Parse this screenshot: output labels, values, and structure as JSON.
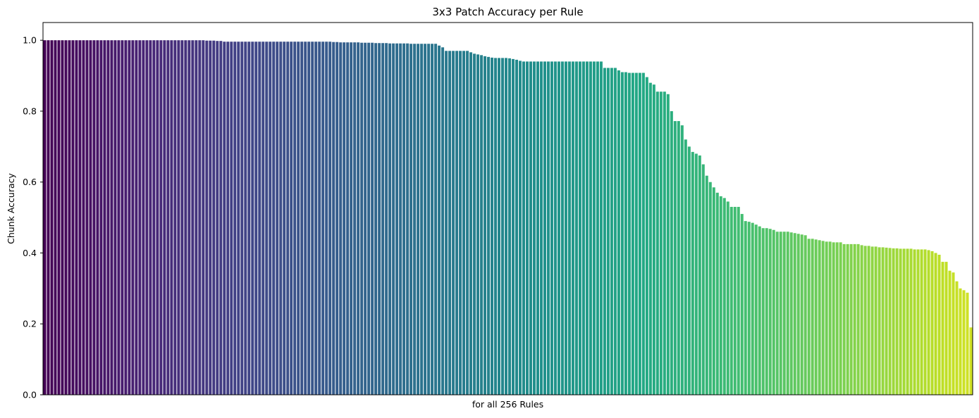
{
  "chart_data": {
    "type": "bar",
    "title": "3x3 Patch Accuracy per Rule",
    "xlabel": "for all 256 Rules",
    "ylabel": "Chunk Accuracy",
    "ylim": [
      0,
      1.05
    ],
    "yticks": [
      0.0,
      0.2,
      0.4,
      0.6,
      0.8,
      1.0
    ],
    "ytick_labels": [
      "0.0",
      "0.2",
      "0.4",
      "0.6",
      "0.8",
      "1.0"
    ],
    "x_ticks_shown": false,
    "grid": false,
    "legend": "none",
    "colormap": "viridis",
    "sort_order": "descending",
    "n_bars": 256,
    "values": [
      1.0,
      1.0,
      1.0,
      1.0,
      1.0,
      1.0,
      1.0,
      1.0,
      1.0,
      1.0,
      1.0,
      1.0,
      1.0,
      1.0,
      1.0,
      1.0,
      1.0,
      1.0,
      1.0,
      1.0,
      1.0,
      1.0,
      1.0,
      1.0,
      1.0,
      1.0,
      1.0,
      1.0,
      1.0,
      1.0,
      1.0,
      1.0,
      1.0,
      1.0,
      1.0,
      1.0,
      1.0,
      1.0,
      1.0,
      1.0,
      1.0,
      1.0,
      1.0,
      1.0,
      1.0,
      1.0,
      0.999,
      0.999,
      0.999,
      0.998,
      0.998,
      0.996,
      0.996,
      0.996,
      0.996,
      0.996,
      0.996,
      0.996,
      0.996,
      0.996,
      0.996,
      0.996,
      0.996,
      0.996,
      0.996,
      0.996,
      0.996,
      0.996,
      0.996,
      0.996,
      0.996,
      0.996,
      0.996,
      0.996,
      0.996,
      0.996,
      0.996,
      0.996,
      0.996,
      0.996,
      0.996,
      0.996,
      0.995,
      0.995,
      0.994,
      0.994,
      0.994,
      0.994,
      0.994,
      0.994,
      0.993,
      0.993,
      0.993,
      0.993,
      0.992,
      0.992,
      0.992,
      0.992,
      0.991,
      0.991,
      0.991,
      0.991,
      0.991,
      0.991,
      0.99,
      0.99,
      0.99,
      0.99,
      0.99,
      0.99,
      0.99,
      0.99,
      0.985,
      0.98,
      0.97,
      0.97,
      0.97,
      0.97,
      0.97,
      0.97,
      0.97,
      0.966,
      0.962,
      0.96,
      0.958,
      0.955,
      0.953,
      0.951,
      0.95,
      0.95,
      0.95,
      0.95,
      0.949,
      0.947,
      0.945,
      0.942,
      0.94,
      0.94,
      0.94,
      0.94,
      0.94,
      0.94,
      0.94,
      0.94,
      0.94,
      0.94,
      0.94,
      0.94,
      0.94,
      0.94,
      0.94,
      0.94,
      0.94,
      0.94,
      0.94,
      0.94,
      0.94,
      0.94,
      0.94,
      0.922,
      0.922,
      0.922,
      0.922,
      0.915,
      0.91,
      0.91,
      0.908,
      0.908,
      0.908,
      0.908,
      0.908,
      0.896,
      0.88,
      0.875,
      0.855,
      0.855,
      0.855,
      0.848,
      0.8,
      0.772,
      0.772,
      0.76,
      0.72,
      0.7,
      0.685,
      0.68,
      0.675,
      0.65,
      0.618,
      0.6,
      0.585,
      0.57,
      0.56,
      0.555,
      0.545,
      0.53,
      0.53,
      0.53,
      0.51,
      0.49,
      0.488,
      0.485,
      0.48,
      0.475,
      0.47,
      0.47,
      0.468,
      0.465,
      0.46,
      0.46,
      0.46,
      0.46,
      0.458,
      0.456,
      0.454,
      0.452,
      0.45,
      0.44,
      0.44,
      0.438,
      0.436,
      0.434,
      0.432,
      0.432,
      0.43,
      0.43,
      0.43,
      0.425,
      0.425,
      0.425,
      0.425,
      0.425,
      0.422,
      0.42,
      0.42,
      0.418,
      0.418,
      0.416,
      0.416,
      0.415,
      0.414,
      0.413,
      0.413,
      0.412,
      0.412,
      0.412,
      0.412,
      0.41,
      0.41,
      0.41,
      0.41,
      0.408,
      0.405,
      0.4,
      0.395,
      0.375,
      0.375,
      0.35,
      0.345,
      0.32,
      0.3,
      0.295,
      0.288,
      0.19
    ]
  }
}
